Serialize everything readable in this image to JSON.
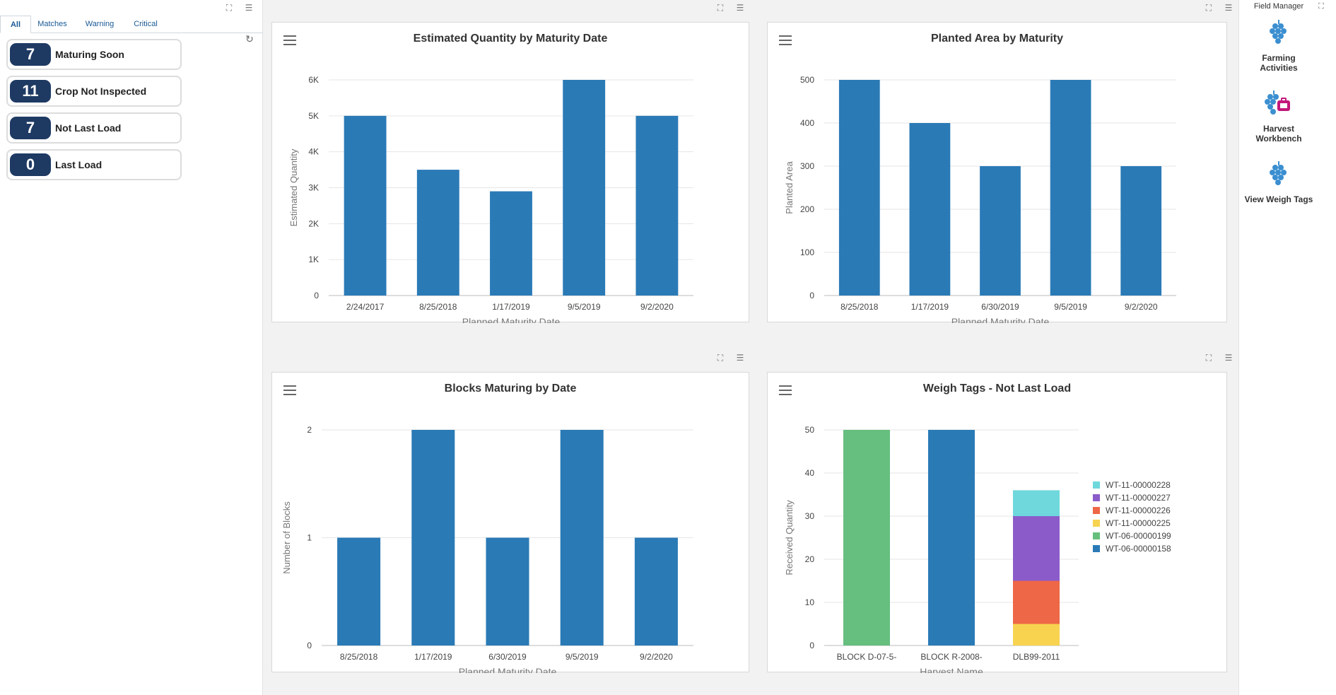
{
  "left_panel": {
    "tabs": [
      "All",
      "Matches",
      "Warning",
      "Critical"
    ],
    "kpis": [
      {
        "count": "7",
        "label": "Maturing Soon"
      },
      {
        "count": "11",
        "label": "Crop Not Inspected"
      },
      {
        "count": "7",
        "label": "Not Last Load"
      },
      {
        "count": "0",
        "label": "Last Load"
      }
    ]
  },
  "right_panel": {
    "title": "Field Manager",
    "apps": [
      {
        "line1": "Farming",
        "line2": "Activities"
      },
      {
        "line1": "Harvest",
        "line2": "Workbench"
      },
      {
        "line1": "View Weigh Tags",
        "line2": ""
      }
    ]
  },
  "colors": {
    "bar": "#2a7ab6",
    "kpi": "#1e3a63"
  },
  "chart_data": [
    {
      "type": "bar",
      "title": "Estimated Quantity by Maturity Date",
      "xlabel": "Planned Maturity Date",
      "ylabel": "Estimated Quantity",
      "categories": [
        "2/24/2017",
        "8/25/2018",
        "1/17/2019",
        "9/5/2019",
        "9/2/2020"
      ],
      "values": [
        5000,
        3500,
        2900,
        6000,
        5000
      ],
      "ylim": [
        0,
        6000
      ],
      "ticks": [
        0,
        1000,
        2000,
        3000,
        4000,
        5000,
        6000
      ],
      "tick_labels": [
        "0",
        "1K",
        "2K",
        "3K",
        "4K",
        "5K",
        "6K"
      ]
    },
    {
      "type": "bar",
      "title": "Planted Area by Maturity",
      "xlabel": "Planned Maturity Date",
      "ylabel": "Planted Area",
      "categories": [
        "8/25/2018",
        "1/17/2019",
        "6/30/2019",
        "9/5/2019",
        "9/2/2020"
      ],
      "values": [
        500,
        400,
        300,
        500,
        300
      ],
      "ylim": [
        0,
        500
      ],
      "ticks": [
        0,
        100,
        200,
        300,
        400,
        500
      ],
      "tick_labels": [
        "0",
        "100",
        "200",
        "300",
        "400",
        "500"
      ]
    },
    {
      "type": "bar",
      "title": "Blocks Maturing by Date",
      "xlabel": "Planned Maturity Date",
      "ylabel": "Number of Blocks",
      "categories": [
        "8/25/2018",
        "1/17/2019",
        "6/30/2019",
        "9/5/2019",
        "9/2/2020"
      ],
      "values": [
        1,
        2,
        1,
        2,
        1
      ],
      "ylim": [
        0,
        2
      ],
      "ticks": [
        0,
        1,
        2
      ],
      "tick_labels": [
        "0",
        "1",
        "2"
      ]
    },
    {
      "type": "bar",
      "stacked": true,
      "title": "Weigh Tags - Not Last Load",
      "xlabel": "Harvest Name",
      "ylabel": "Received Quantity",
      "categories": [
        "BLOCK D-07-5-",
        "BLOCK R-2008-",
        "DLB99-2011"
      ],
      "ylim": [
        0,
        50
      ],
      "ticks": [
        0,
        10,
        20,
        30,
        40,
        50
      ],
      "tick_labels": [
        "0",
        "10",
        "20",
        "30",
        "40",
        "50"
      ],
      "series": [
        {
          "name": "WT-06-00000158",
          "color": "#2a7ab6",
          "values": [
            0,
            50,
            0
          ]
        },
        {
          "name": "WT-06-00000199",
          "color": "#66bf7e",
          "values": [
            50,
            0,
            0
          ]
        },
        {
          "name": "WT-11-00000225",
          "color": "#f7d350",
          "values": [
            0,
            0,
            5
          ]
        },
        {
          "name": "WT-11-00000226",
          "color": "#ee6746",
          "values": [
            0,
            0,
            10
          ]
        },
        {
          "name": "WT-11-00000227",
          "color": "#8b5cc9",
          "values": [
            0,
            0,
            15
          ]
        },
        {
          "name": "WT-11-00000228",
          "color": "#6ed8dc",
          "values": [
            0,
            0,
            6
          ]
        }
      ]
    }
  ]
}
